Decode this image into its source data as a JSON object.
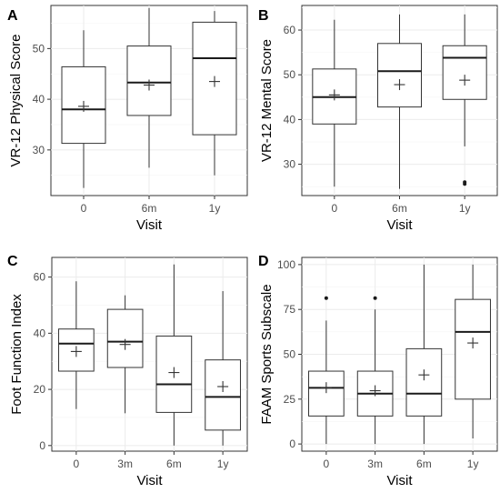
{
  "chart_data": [
    {
      "panel": "A",
      "type": "boxplot",
      "xlabel": "Visit",
      "ylabel": "VR-12 Physical Score",
      "categories": [
        "0",
        "6m",
        "1y"
      ],
      "ylim": [
        21,
        58.5
      ],
      "yticks": [
        30,
        40,
        50
      ],
      "grid": true,
      "boxes": [
        {
          "whisker_low": 22.5,
          "q1": 31.3,
          "median": 38.0,
          "q3": 46.4,
          "whisker_high": 53.6,
          "mean": 38.6,
          "outliers": []
        },
        {
          "whisker_low": 26.5,
          "q1": 36.8,
          "median": 43.3,
          "q3": 50.5,
          "whisker_high": 58.0,
          "mean": 42.8,
          "outliers": []
        },
        {
          "whisker_low": 25.0,
          "q1": 33.0,
          "median": 48.1,
          "q3": 55.2,
          "whisker_high": 57.4,
          "mean": 43.5,
          "outliers": []
        }
      ]
    },
    {
      "panel": "B",
      "type": "boxplot",
      "xlabel": "Visit",
      "ylabel": "VR-12 Mental Score",
      "categories": [
        "0",
        "6m",
        "1y"
      ],
      "ylim": [
        23,
        65.5
      ],
      "yticks": [
        30,
        40,
        50,
        60
      ],
      "grid": true,
      "boxes": [
        {
          "whisker_low": 25.0,
          "q1": 39.0,
          "median": 45.0,
          "q3": 51.3,
          "whisker_high": 62.3,
          "mean": 45.5,
          "outliers": []
        },
        {
          "whisker_low": 24.5,
          "q1": 42.8,
          "median": 50.8,
          "q3": 57.0,
          "whisker_high": 63.5,
          "mean": 47.8,
          "outliers": []
        },
        {
          "whisker_low": 34.0,
          "q1": 44.5,
          "median": 53.8,
          "q3": 56.5,
          "whisker_high": 63.5,
          "mean": 48.8,
          "outliers": [
            26.0,
            25.6
          ]
        }
      ]
    },
    {
      "panel": "C",
      "type": "boxplot",
      "xlabel": "Visit",
      "ylabel": "Foot Function Index",
      "categories": [
        "0",
        "3m",
        "6m",
        "1y"
      ],
      "ylim": [
        -2,
        67
      ],
      "yticks": [
        0,
        20,
        40,
        60
      ],
      "grid": true,
      "boxes": [
        {
          "whisker_low": 13.0,
          "q1": 26.5,
          "median": 36.3,
          "q3": 41.5,
          "whisker_high": 58.5,
          "mean": 33.5,
          "outliers": []
        },
        {
          "whisker_low": 11.5,
          "q1": 27.8,
          "median": 37.0,
          "q3": 48.5,
          "whisker_high": 53.5,
          "mean": 36.0,
          "outliers": []
        },
        {
          "whisker_low": 0.0,
          "q1": 11.8,
          "median": 21.8,
          "q3": 39.0,
          "whisker_high": 64.5,
          "mean": 26.0,
          "outliers": []
        },
        {
          "whisker_low": 0.0,
          "q1": 5.5,
          "median": 17.3,
          "q3": 30.5,
          "whisker_high": 55.0,
          "mean": 21.0,
          "outliers": []
        }
      ]
    },
    {
      "panel": "D",
      "type": "boxplot",
      "xlabel": "Visit",
      "ylabel": "FAAM Sports Subscale",
      "categories": [
        "0",
        "3m",
        "6m",
        "1y"
      ],
      "ylim": [
        -4,
        104
      ],
      "yticks": [
        0,
        25,
        50,
        75,
        100
      ],
      "grid": true,
      "boxes": [
        {
          "whisker_low": 0.0,
          "q1": 15.6,
          "median": 31.3,
          "q3": 40.6,
          "whisker_high": 68.8,
          "mean": 31.4,
          "outliers": [
            81.3
          ]
        },
        {
          "whisker_low": 0.0,
          "q1": 15.6,
          "median": 28.1,
          "q3": 40.6,
          "whisker_high": 75.0,
          "mean": 29.7,
          "outliers": [
            81.3
          ]
        },
        {
          "whisker_low": 0.0,
          "q1": 15.6,
          "median": 28.1,
          "q3": 53.1,
          "whisker_high": 100.0,
          "mean": 38.5,
          "outliers": []
        },
        {
          "whisker_low": 3.1,
          "q1": 25.0,
          "median": 62.5,
          "q3": 80.6,
          "whisker_high": 100.0,
          "mean": 56.3,
          "outliers": []
        }
      ]
    }
  ]
}
